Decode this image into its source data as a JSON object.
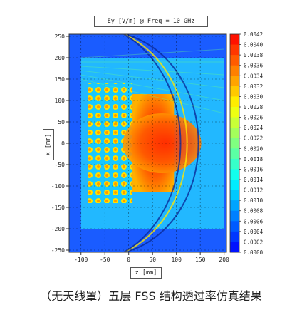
{
  "chart_data": {
    "type": "heatmap",
    "title": "Ey [V/m] @ Freq = 10 GHz",
    "xlabel": "z [mm]",
    "ylabel": "x [mm]",
    "xlim": [
      -125,
      205
    ],
    "ylim": [
      -255,
      255
    ],
    "x_ticks": [
      -100,
      -50,
      0,
      50,
      100,
      150,
      200
    ],
    "y_ticks": [
      250,
      200,
      150,
      100,
      50,
      0,
      -50,
      -100,
      -150,
      -200,
      -250
    ],
    "colorbar": {
      "labels": [
        "0.0042",
        "0.0040",
        "0.0038",
        "0.0036",
        "0.0034",
        "0.0032",
        "0.0030",
        "0.0028",
        "0.0026",
        "0.0024",
        "0.0022",
        "0.0020",
        "0.0018",
        "0.0016",
        "0.0014",
        "0.0012",
        "0.0010",
        "0.0008",
        "0.0006",
        "0.0004",
        "0.0002",
        "0.0000"
      ],
      "min": 0.0,
      "max": 0.0042,
      "colormap": [
        "#0000ff",
        "#0080ff",
        "#00ffff",
        "#80ff80",
        "#ffff00",
        "#ff8000",
        "#ff0000"
      ]
    },
    "grid": true
  },
  "caption": "（无天线罩）五层 FSS 结构透过率仿真结果"
}
